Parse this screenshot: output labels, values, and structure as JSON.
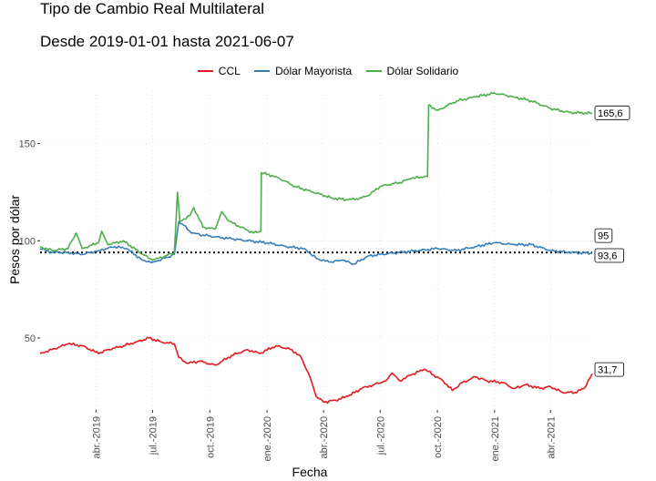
{
  "chart_data": {
    "type": "line",
    "title": "Tipo de Cambio Real Multilateral",
    "subtitle": "Desde 2019-01-01 hasta 2021-06-07",
    "xlabel": "Fecha",
    "ylabel": "Pesos por dólar",
    "x_range": [
      "2019-01-01",
      "2021-06-07"
    ],
    "ylim": [
      13,
      177
    ],
    "y_ticks": [
      50,
      100,
      150
    ],
    "y_tick_labels": [
      "50",
      "100",
      "150"
    ],
    "x_ticks": [
      "2019-04-01",
      "2019-07-01",
      "2019-10-01",
      "2020-01-01",
      "2020-04-01",
      "2020-07-01",
      "2020-10-01",
      "2021-01-01",
      "2021-04-01"
    ],
    "x_tick_labels": [
      "abr.-2019",
      "jul.-2019",
      "oct.-2019",
      "ene.-2020",
      "abr.-2020",
      "jul.-2020",
      "oct.-2020",
      "ene.-2021",
      "abr.-2021"
    ],
    "grid": true,
    "legend_position": "top",
    "reference_line": {
      "value": 94,
      "style": "dotted"
    },
    "end_labels": [
      "165,6",
      "95",
      "93,6",
      "31,7"
    ],
    "series": [
      {
        "name": "CCL",
        "color": "#e41a1c",
        "points": [
          [
            "2019-01-01",
            42
          ],
          [
            "2019-01-20",
            44
          ],
          [
            "2019-02-15",
            47
          ],
          [
            "2019-03-10",
            46
          ],
          [
            "2019-04-05",
            42
          ],
          [
            "2019-04-20",
            44
          ],
          [
            "2019-05-15",
            46
          ],
          [
            "2019-06-05",
            48
          ],
          [
            "2019-06-25",
            50
          ],
          [
            "2019-07-15",
            48
          ],
          [
            "2019-08-05",
            47
          ],
          [
            "2019-08-12",
            40
          ],
          [
            "2019-08-25",
            37
          ],
          [
            "2019-09-15",
            38
          ],
          [
            "2019-10-10",
            36
          ],
          [
            "2019-11-05",
            41
          ],
          [
            "2019-12-01",
            44
          ],
          [
            "2019-12-20",
            42
          ],
          [
            "2020-01-15",
            46
          ],
          [
            "2020-02-10",
            44
          ],
          [
            "2020-02-25",
            40
          ],
          [
            "2020-03-10",
            30
          ],
          [
            "2020-03-20",
            20
          ],
          [
            "2020-04-01",
            17
          ],
          [
            "2020-04-20",
            18
          ],
          [
            "2020-05-10",
            20
          ],
          [
            "2020-06-01",
            24
          ],
          [
            "2020-06-20",
            26
          ],
          [
            "2020-07-10",
            28
          ],
          [
            "2020-07-20",
            32
          ],
          [
            "2020-08-01",
            28
          ],
          [
            "2020-08-20",
            31
          ],
          [
            "2020-09-10",
            34
          ],
          [
            "2020-09-25",
            31
          ],
          [
            "2020-10-10",
            28
          ],
          [
            "2020-10-25",
            23
          ],
          [
            "2020-11-10",
            27
          ],
          [
            "2020-12-01",
            30
          ],
          [
            "2020-12-20",
            28
          ],
          [
            "2021-01-15",
            27
          ],
          [
            "2021-02-01",
            24
          ],
          [
            "2021-02-20",
            26
          ],
          [
            "2021-03-15",
            24
          ],
          [
            "2021-04-01",
            25
          ],
          [
            "2021-04-20",
            22
          ],
          [
            "2021-05-10",
            22
          ],
          [
            "2021-05-25",
            24
          ],
          [
            "2021-06-07",
            31.7
          ]
        ]
      },
      {
        "name": "Dólar Mayorista",
        "color": "#377eb8",
        "points": [
          [
            "2019-01-01",
            96
          ],
          [
            "2019-01-20",
            94
          ],
          [
            "2019-02-15",
            94
          ],
          [
            "2019-03-10",
            93
          ],
          [
            "2019-04-05",
            95
          ],
          [
            "2019-05-01",
            97
          ],
          [
            "2019-05-20",
            96
          ],
          [
            "2019-06-15",
            90
          ],
          [
            "2019-07-01",
            89
          ],
          [
            "2019-07-20",
            91
          ],
          [
            "2019-08-05",
            93
          ],
          [
            "2019-08-12",
            110
          ],
          [
            "2019-08-20",
            108
          ],
          [
            "2019-09-01",
            104
          ],
          [
            "2019-09-20",
            103
          ],
          [
            "2019-10-10",
            102
          ],
          [
            "2019-11-05",
            101
          ],
          [
            "2019-12-01",
            100
          ],
          [
            "2020-01-01",
            99
          ],
          [
            "2020-02-01",
            97
          ],
          [
            "2020-03-01",
            96
          ],
          [
            "2020-03-20",
            91
          ],
          [
            "2020-04-10",
            89
          ],
          [
            "2020-05-01",
            90
          ],
          [
            "2020-05-20",
            88
          ],
          [
            "2020-06-10",
            92
          ],
          [
            "2020-07-01",
            93
          ],
          [
            "2020-08-01",
            94
          ],
          [
            "2020-09-01",
            95
          ],
          [
            "2020-10-01",
            96
          ],
          [
            "2020-11-01",
            95
          ],
          [
            "2020-12-01",
            97
          ],
          [
            "2021-01-01",
            99
          ],
          [
            "2021-02-01",
            98
          ],
          [
            "2021-03-01",
            98
          ],
          [
            "2021-04-01",
            95
          ],
          [
            "2021-05-01",
            94
          ],
          [
            "2021-06-07",
            93.6
          ]
        ]
      },
      {
        "name": "Dólar Solidario",
        "color": "#4daf4a",
        "points": [
          [
            "2019-01-01",
            97
          ],
          [
            "2019-01-20",
            95
          ],
          [
            "2019-02-15",
            96
          ],
          [
            "2019-02-28",
            104
          ],
          [
            "2019-03-10",
            96
          ],
          [
            "2019-04-05",
            99
          ],
          [
            "2019-04-10",
            105
          ],
          [
            "2019-04-20",
            98
          ],
          [
            "2019-05-15",
            100
          ],
          [
            "2019-06-15",
            93
          ],
          [
            "2019-07-01",
            90
          ],
          [
            "2019-07-20",
            92
          ],
          [
            "2019-08-05",
            94
          ],
          [
            "2019-08-10",
            125
          ],
          [
            "2019-08-14",
            110
          ],
          [
            "2019-08-30",
            113
          ],
          [
            "2019-09-05",
            117
          ],
          [
            "2019-09-20",
            107
          ],
          [
            "2019-10-10",
            106
          ],
          [
            "2019-10-20",
            115
          ],
          [
            "2019-11-01",
            110
          ],
          [
            "2019-12-10",
            104
          ],
          [
            "2019-12-22",
            105
          ],
          [
            "2019-12-23",
            135
          ],
          [
            "2020-01-15",
            133
          ],
          [
            "2020-02-15",
            128
          ],
          [
            "2020-03-15",
            125
          ],
          [
            "2020-04-15",
            122
          ],
          [
            "2020-05-10",
            121
          ],
          [
            "2020-06-01",
            122
          ],
          [
            "2020-06-15",
            124
          ],
          [
            "2020-07-01",
            128
          ],
          [
            "2020-08-01",
            130
          ],
          [
            "2020-08-20",
            132
          ],
          [
            "2020-09-10",
            133
          ],
          [
            "2020-09-15",
            133
          ],
          [
            "2020-09-17",
            170
          ],
          [
            "2020-10-01",
            167
          ],
          [
            "2020-11-01",
            172
          ],
          [
            "2020-12-01",
            174
          ],
          [
            "2021-01-01",
            176
          ],
          [
            "2021-02-01",
            174
          ],
          [
            "2021-03-01",
            172
          ],
          [
            "2021-04-01",
            168
          ],
          [
            "2021-05-01",
            166
          ],
          [
            "2021-06-07",
            165.6
          ]
        ]
      }
    ]
  }
}
